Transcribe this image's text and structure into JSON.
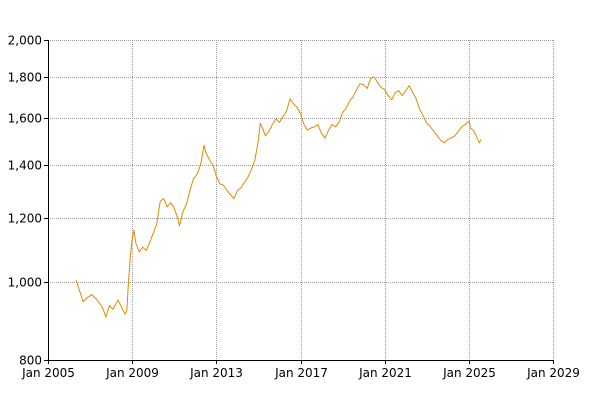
{
  "chart_data": {
    "type": "line",
    "title": "",
    "xlabel": "",
    "ylabel": "",
    "y_scale": "log",
    "grid": true,
    "legend": "none",
    "xlim": [
      "2005-01",
      "2029-01"
    ],
    "ylim": [
      800,
      2000
    ],
    "x_ticks": [
      {
        "date": "2005-01",
        "label": "Jan 2005"
      },
      {
        "date": "2009-01",
        "label": "Jan 2009"
      },
      {
        "date": "2013-01",
        "label": "Jan 2013"
      },
      {
        "date": "2017-01",
        "label": "Jan 2017"
      },
      {
        "date": "2021-01",
        "label": "Jan 2021"
      },
      {
        "date": "2025-01",
        "label": "Jan 2025"
      },
      {
        "date": "2029-01",
        "label": "Jan 2029"
      }
    ],
    "y_ticks": [
      {
        "value": 800,
        "label": "800"
      },
      {
        "value": 1000,
        "label": "1,000"
      },
      {
        "value": 1200,
        "label": "1,200"
      },
      {
        "value": 1400,
        "label": "1,400"
      },
      {
        "value": 1600,
        "label": "1,600"
      },
      {
        "value": 1800,
        "label": "1,800"
      },
      {
        "value": 2000,
        "label": "2,000"
      }
    ],
    "series": [
      {
        "color": "#e08a00",
        "points": [
          [
            "2006-05",
            1005
          ],
          [
            "2006-07",
            975
          ],
          [
            "2006-09",
            945
          ],
          [
            "2006-11",
            955
          ],
          [
            "2007-02",
            965
          ],
          [
            "2007-05",
            950
          ],
          [
            "2007-08",
            930
          ],
          [
            "2007-10",
            905
          ],
          [
            "2007-12",
            935
          ],
          [
            "2008-02",
            925
          ],
          [
            "2008-05",
            950
          ],
          [
            "2008-07",
            930
          ],
          [
            "2008-09",
            912
          ],
          [
            "2008-10",
            925
          ],
          [
            "2008-11",
            1010
          ],
          [
            "2008-12",
            1080
          ],
          [
            "2009-01",
            1130
          ],
          [
            "2009-02",
            1160
          ],
          [
            "2009-03",
            1120
          ],
          [
            "2009-05",
            1090
          ],
          [
            "2009-07",
            1105
          ],
          [
            "2009-09",
            1095
          ],
          [
            "2009-11",
            1120
          ],
          [
            "2010-01",
            1150
          ],
          [
            "2010-03",
            1180
          ],
          [
            "2010-05",
            1260
          ],
          [
            "2010-07",
            1270
          ],
          [
            "2010-09",
            1240
          ],
          [
            "2010-11",
            1255
          ],
          [
            "2011-01",
            1235
          ],
          [
            "2011-03",
            1200
          ],
          [
            "2011-04",
            1175
          ],
          [
            "2011-06",
            1225
          ],
          [
            "2011-08",
            1250
          ],
          [
            "2011-10",
            1300
          ],
          [
            "2011-12",
            1345
          ],
          [
            "2012-02",
            1360
          ],
          [
            "2012-04",
            1400
          ],
          [
            "2012-06",
            1480
          ],
          [
            "2012-07",
            1450
          ],
          [
            "2012-09",
            1420
          ],
          [
            "2012-11",
            1400
          ],
          [
            "2013-01",
            1355
          ],
          [
            "2013-03",
            1325
          ],
          [
            "2013-05",
            1320
          ],
          [
            "2013-07",
            1300
          ],
          [
            "2013-09",
            1285
          ],
          [
            "2013-11",
            1270
          ],
          [
            "2014-01",
            1300
          ],
          [
            "2014-03",
            1310
          ],
          [
            "2014-05",
            1330
          ],
          [
            "2014-07",
            1350
          ],
          [
            "2014-09",
            1380
          ],
          [
            "2014-11",
            1420
          ],
          [
            "2015-01",
            1500
          ],
          [
            "2015-02",
            1575
          ],
          [
            "2015-03",
            1560
          ],
          [
            "2015-05",
            1520
          ],
          [
            "2015-07",
            1540
          ],
          [
            "2015-09",
            1570
          ],
          [
            "2015-11",
            1595
          ],
          [
            "2016-01",
            1580
          ],
          [
            "2016-03",
            1605
          ],
          [
            "2016-05",
            1630
          ],
          [
            "2016-07",
            1690
          ],
          [
            "2016-09",
            1665
          ],
          [
            "2016-11",
            1650
          ],
          [
            "2017-01",
            1620
          ],
          [
            "2017-03",
            1570
          ],
          [
            "2017-05",
            1545
          ],
          [
            "2017-07",
            1555
          ],
          [
            "2017-09",
            1560
          ],
          [
            "2017-11",
            1570
          ],
          [
            "2018-01",
            1530
          ],
          [
            "2018-03",
            1510
          ],
          [
            "2018-05",
            1545
          ],
          [
            "2018-07",
            1570
          ],
          [
            "2018-09",
            1560
          ],
          [
            "2018-11",
            1580
          ],
          [
            "2019-01",
            1625
          ],
          [
            "2019-03",
            1645
          ],
          [
            "2019-05",
            1680
          ],
          [
            "2019-07",
            1700
          ],
          [
            "2019-09",
            1735
          ],
          [
            "2019-11",
            1765
          ],
          [
            "2020-01",
            1760
          ],
          [
            "2020-03",
            1740
          ],
          [
            "2020-05",
            1790
          ],
          [
            "2020-07",
            1800
          ],
          [
            "2020-09",
            1770
          ],
          [
            "2020-11",
            1745
          ],
          [
            "2021-01",
            1735
          ],
          [
            "2021-03",
            1705
          ],
          [
            "2021-05",
            1685
          ],
          [
            "2021-07",
            1720
          ],
          [
            "2021-09",
            1730
          ],
          [
            "2021-11",
            1705
          ],
          [
            "2022-01",
            1730
          ],
          [
            "2022-03",
            1755
          ],
          [
            "2022-05",
            1720
          ],
          [
            "2022-07",
            1690
          ],
          [
            "2022-09",
            1640
          ],
          [
            "2022-11",
            1610
          ],
          [
            "2023-01",
            1575
          ],
          [
            "2023-03",
            1560
          ],
          [
            "2023-05",
            1540
          ],
          [
            "2023-07",
            1520
          ],
          [
            "2023-09",
            1500
          ],
          [
            "2023-11",
            1490
          ],
          [
            "2024-01",
            1505
          ],
          [
            "2024-03",
            1510
          ],
          [
            "2024-05",
            1520
          ],
          [
            "2024-07",
            1540
          ],
          [
            "2024-09",
            1560
          ],
          [
            "2024-11",
            1570
          ],
          [
            "2025-01",
            1585
          ],
          [
            "2025-02",
            1555
          ],
          [
            "2025-04",
            1540
          ],
          [
            "2025-06",
            1505
          ],
          [
            "2025-07",
            1490
          ],
          [
            "2025-08",
            1505
          ]
        ]
      }
    ]
  }
}
